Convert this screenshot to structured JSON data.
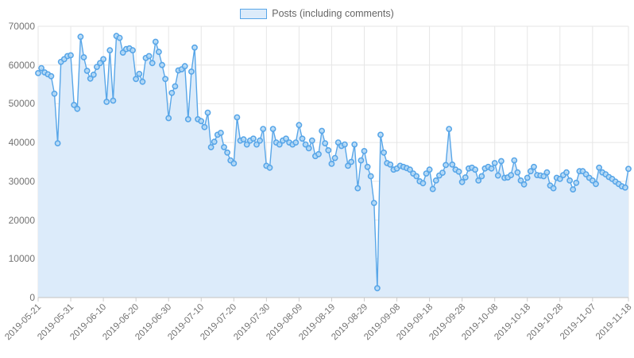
{
  "legend": {
    "label": "Posts (including comments)"
  },
  "watermark": {
    "name": "steem-logo"
  },
  "chart_data": {
    "type": "area",
    "title": "",
    "xlabel": "",
    "ylabel": "",
    "ylim": [
      0,
      70000
    ],
    "grid": true,
    "legend_position": "top",
    "y_ticks": [
      0,
      10000,
      20000,
      30000,
      40000,
      50000,
      60000,
      70000
    ],
    "x_ticks": [
      "2019-05-21",
      "2019-05-31",
      "2019-06-10",
      "2019-06-20",
      "2019-06-30",
      "2019-07-10",
      "2019-07-20",
      "2019-07-30",
      "2019-08-09",
      "2019-08-19",
      "2019-08-29",
      "2019-09-08",
      "2019-09-18",
      "2019-09-28",
      "2019-10-08",
      "2019-10-18",
      "2019-10-28",
      "2019-11-07",
      "2019-11-18"
    ],
    "series": [
      {
        "name": "Posts (including comments)",
        "start_date": "2019-05-21",
        "end_date": "2019-11-18",
        "interval": "daily",
        "values": [
          57900,
          59200,
          58100,
          57600,
          57100,
          52600,
          39800,
          60800,
          61500,
          62300,
          62500,
          49700,
          48700,
          67300,
          62000,
          58500,
          56500,
          57500,
          59500,
          60500,
          61500,
          50500,
          63800,
          50800,
          67500,
          67000,
          63200,
          64100,
          64300,
          63800,
          56400,
          57700,
          55700,
          61800,
          62300,
          60500,
          66000,
          63400,
          60000,
          56400,
          46300,
          52800,
          54500,
          58600,
          58900,
          59700,
          46000,
          58300,
          64500,
          46000,
          45500,
          44000,
          47700,
          38800,
          40200,
          42000,
          42500,
          38800,
          37400,
          35400,
          34600,
          46500,
          40500,
          40800,
          39500,
          40500,
          41000,
          39500,
          40500,
          43500,
          34000,
          33500,
          43500,
          40000,
          39500,
          40500,
          41000,
          40000,
          39500,
          40000,
          44500,
          41000,
          39500,
          38500,
          40500,
          36500,
          37000,
          43000,
          39800,
          38000,
          34500,
          36000,
          40000,
          39100,
          39500,
          34000,
          35000,
          39500,
          28200,
          35400,
          37800,
          33700,
          31300,
          24400,
          2400,
          42000,
          37400,
          34700,
          34300,
          33000,
          33300,
          34000,
          33700,
          33400,
          33000,
          32000,
          31300,
          30000,
          29500,
          32000,
          33000,
          28000,
          30200,
          31500,
          32200,
          34200,
          43500,
          34300,
          33000,
          32500,
          29800,
          31000,
          33300,
          33500,
          33000,
          30200,
          31300,
          33300,
          33700,
          33300,
          34700,
          31500,
          35200,
          30900,
          31000,
          31600,
          35400,
          32300,
          30200,
          29200,
          30900,
          32600,
          33700,
          31600,
          31500,
          31300,
          32300,
          28900,
          28200,
          30900,
          30600,
          31600,
          32300,
          30200,
          27900,
          29600,
          32600,
          32600,
          31800,
          30900,
          30200,
          29300,
          33500,
          32300,
          31800,
          31100,
          30600,
          29900,
          29300,
          28700,
          28400,
          33200
        ]
      }
    ],
    "colors": {
      "line": "#58a6e8",
      "marker_fill": "#b7dbf6",
      "area_fill": "#dcebfa",
      "gridline": "#e6e6e6",
      "axis_line": "#cccccc",
      "axis_text": "#737373",
      "legend_text": "#666666",
      "watermark_side": "#93a2c2",
      "watermark_middle": "#a9c9f2"
    }
  }
}
